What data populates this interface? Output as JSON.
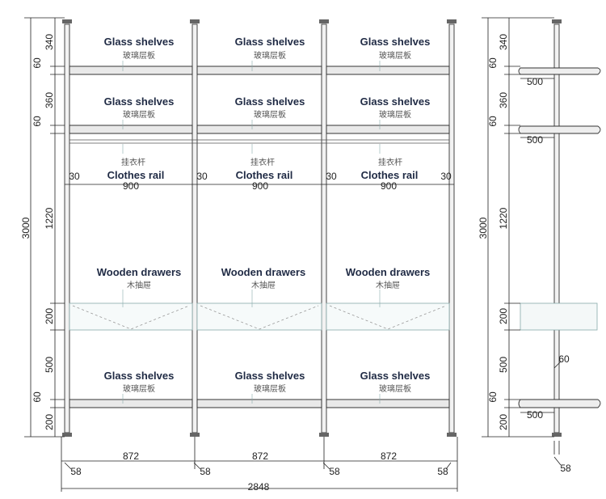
{
  "labels": {
    "glass_en": "Glass shelves",
    "glass_cn": "玻璃层板",
    "rail_en": "Clothes rail",
    "rail_cn": "挂衣杆",
    "drawer_en": "Wooden drawers",
    "drawer_cn": "木抽屉"
  },
  "dims": {
    "total_height": "3000",
    "v_340": "340",
    "v_60": "60",
    "v_360": "360",
    "v_1220": "1220",
    "v_200": "200",
    "v_500": "500",
    "bay_900": "900",
    "gap_30": "30",
    "bay_872": "872",
    "pole_58": "58",
    "total_width": "2848",
    "depth_500": "500"
  }
}
